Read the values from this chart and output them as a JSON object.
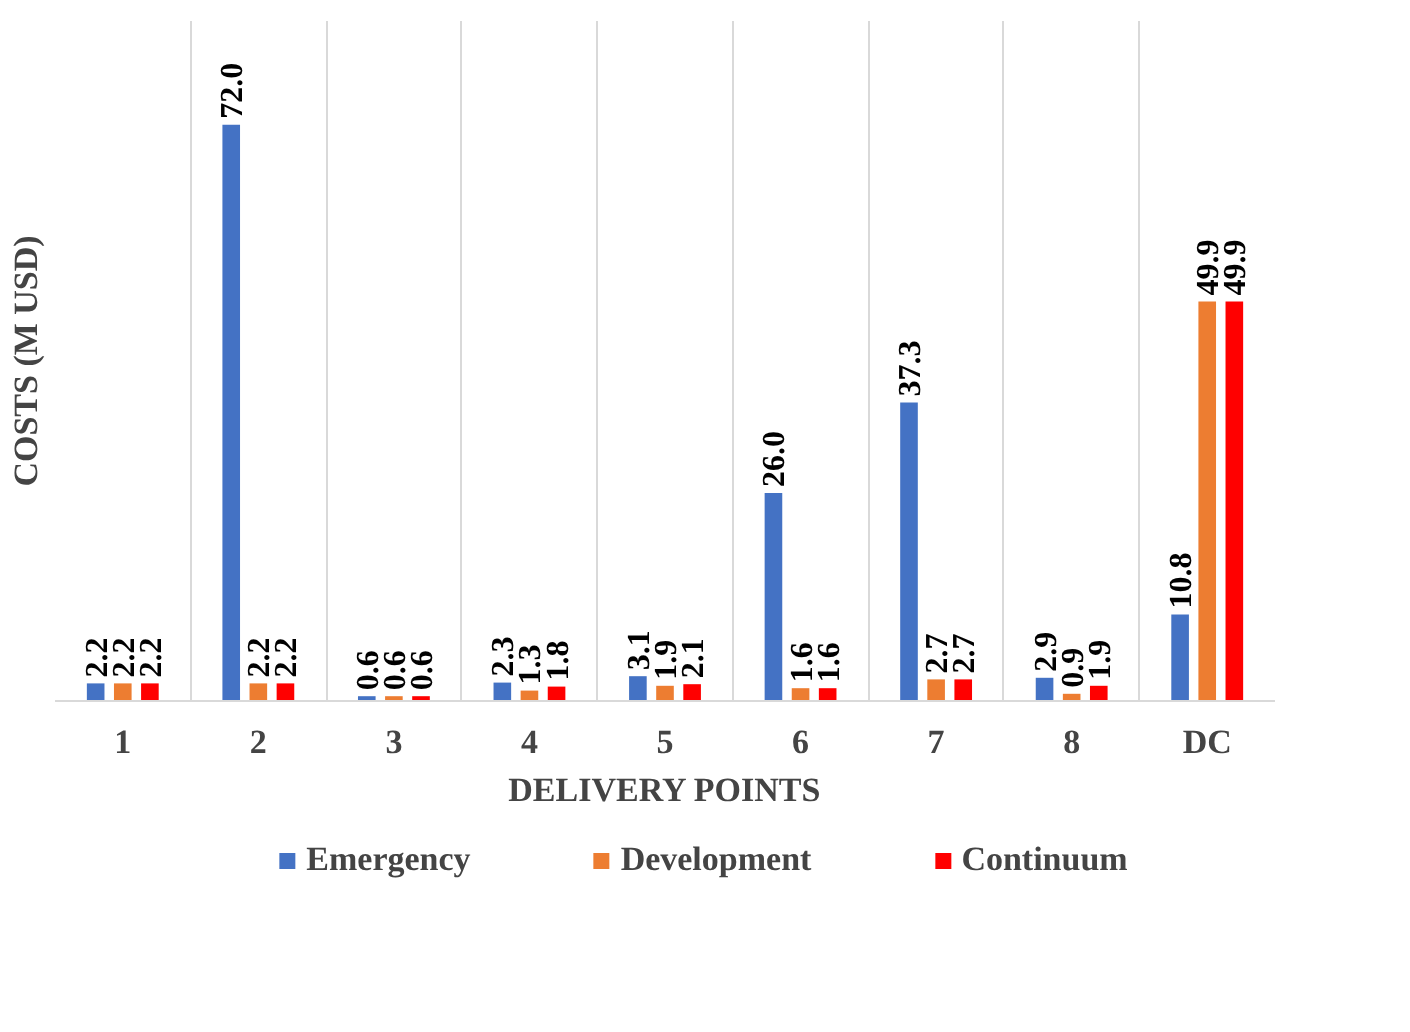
{
  "chart_data": {
    "type": "bar",
    "xlabel": "DELIVERY POINTS",
    "ylabel": "COSTS (M USD)",
    "categories": [
      "1",
      "2",
      "3",
      "4",
      "5",
      "6",
      "7",
      "8",
      "DC"
    ],
    "series": [
      {
        "name": "Emergency",
        "color": "#4472c4",
        "values": [
          2.2,
          72.0,
          0.6,
          2.3,
          3.1,
          26.0,
          37.3,
          2.9,
          10.8
        ],
        "value_labels": [
          "2.2",
          "72.0",
          "0.6",
          "2.3",
          "3.1",
          "26.0",
          "37.3",
          "2.9",
          "10.8"
        ]
      },
      {
        "name": "Development",
        "color": "#ed7d31",
        "values": [
          2.2,
          2.2,
          0.6,
          1.3,
          1.9,
          1.6,
          2.7,
          0.9,
          49.9
        ],
        "value_labels": [
          "2.2",
          "2.2",
          "0.6",
          "1.3",
          "1.9",
          "1.6",
          "2.7",
          "0.9",
          "49.9"
        ]
      },
      {
        "name": "Continuum",
        "color": "#ff0000",
        "values": [
          2.2,
          2.2,
          0.6,
          1.8,
          2.1,
          1.6,
          2.7,
          1.9,
          49.9
        ],
        "value_labels": [
          "2.2",
          "2.2",
          "0.6",
          "1.8",
          "2.1",
          "1.6",
          "2.7",
          "1.9",
          "49.9"
        ]
      }
    ],
    "grid": "x",
    "legend": "bottom"
  }
}
